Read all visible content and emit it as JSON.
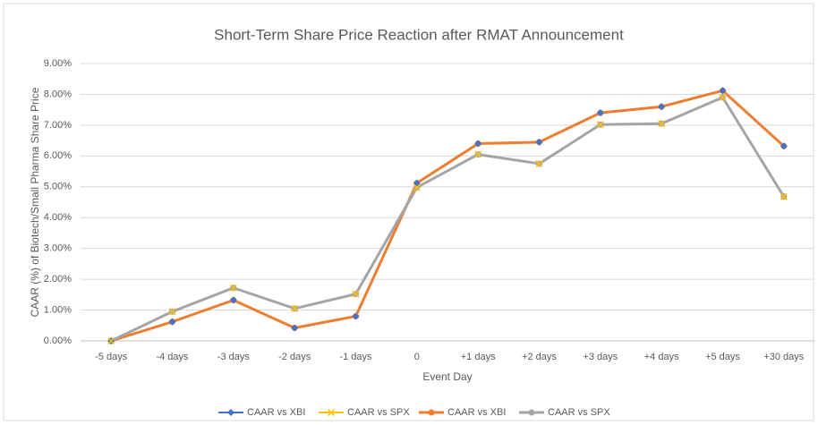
{
  "chart_data": {
    "type": "line",
    "title": "Short-Term Share Price Reaction after RMAT Announcement",
    "xlabel": "Event Day",
    "ylabel": "CAAR (%) of Biotech/Small Pharma Share Price",
    "categories": [
      "-5 days",
      "-4 days",
      "-3 days",
      "-2 days",
      "-1 days",
      "0",
      "+1 days",
      "+2 days",
      "+3 days",
      "+4 days",
      "+5 days",
      "+30 days"
    ],
    "series": [
      {
        "name": "CAAR vs XBI",
        "color": "#4472c4",
        "marker": "diamond",
        "values": [
          0,
          0.62,
          1.32,
          0.42,
          0.8,
          5.12,
          6.4,
          6.45,
          7.4,
          7.6,
          8.12,
          6.32
        ]
      },
      {
        "name": "CAAR vs SPX",
        "color": "#ffc000",
        "marker": "x",
        "values": [
          0,
          0.95,
          1.72,
          1.05,
          1.52,
          4.98,
          6.05,
          5.75,
          7.02,
          7.05,
          7.9,
          4.68
        ]
      },
      {
        "name": "CAAR vs XBI",
        "color": "#ed7d31",
        "marker": "circle",
        "values": [
          0,
          0.62,
          1.32,
          0.42,
          0.8,
          5.12,
          6.4,
          6.45,
          7.4,
          7.6,
          8.12,
          6.32
        ]
      },
      {
        "name": "CAAR vs SPX",
        "color": "#a5a5a5",
        "marker": "circle",
        "values": [
          0,
          0.95,
          1.72,
          1.05,
          1.52,
          4.98,
          6.05,
          5.75,
          7.02,
          7.05,
          7.9,
          4.68
        ]
      }
    ],
    "ylim": [
      0,
      9
    ],
    "yticks": [
      {
        "value": 0,
        "label": "0.00%"
      },
      {
        "value": 1,
        "label": "1.00%"
      },
      {
        "value": 2,
        "label": "2.00%"
      },
      {
        "value": 3,
        "label": "3.00%"
      },
      {
        "value": 4,
        "label": "4.00%"
      },
      {
        "value": 5,
        "label": "5.00%"
      },
      {
        "value": 6,
        "label": "6.00%"
      },
      {
        "value": 7,
        "label": "7.00%"
      },
      {
        "value": 8,
        "label": "8.00%"
      },
      {
        "value": 9,
        "label": "9.00%"
      }
    ],
    "grid": true,
    "legend": "bottom"
  }
}
